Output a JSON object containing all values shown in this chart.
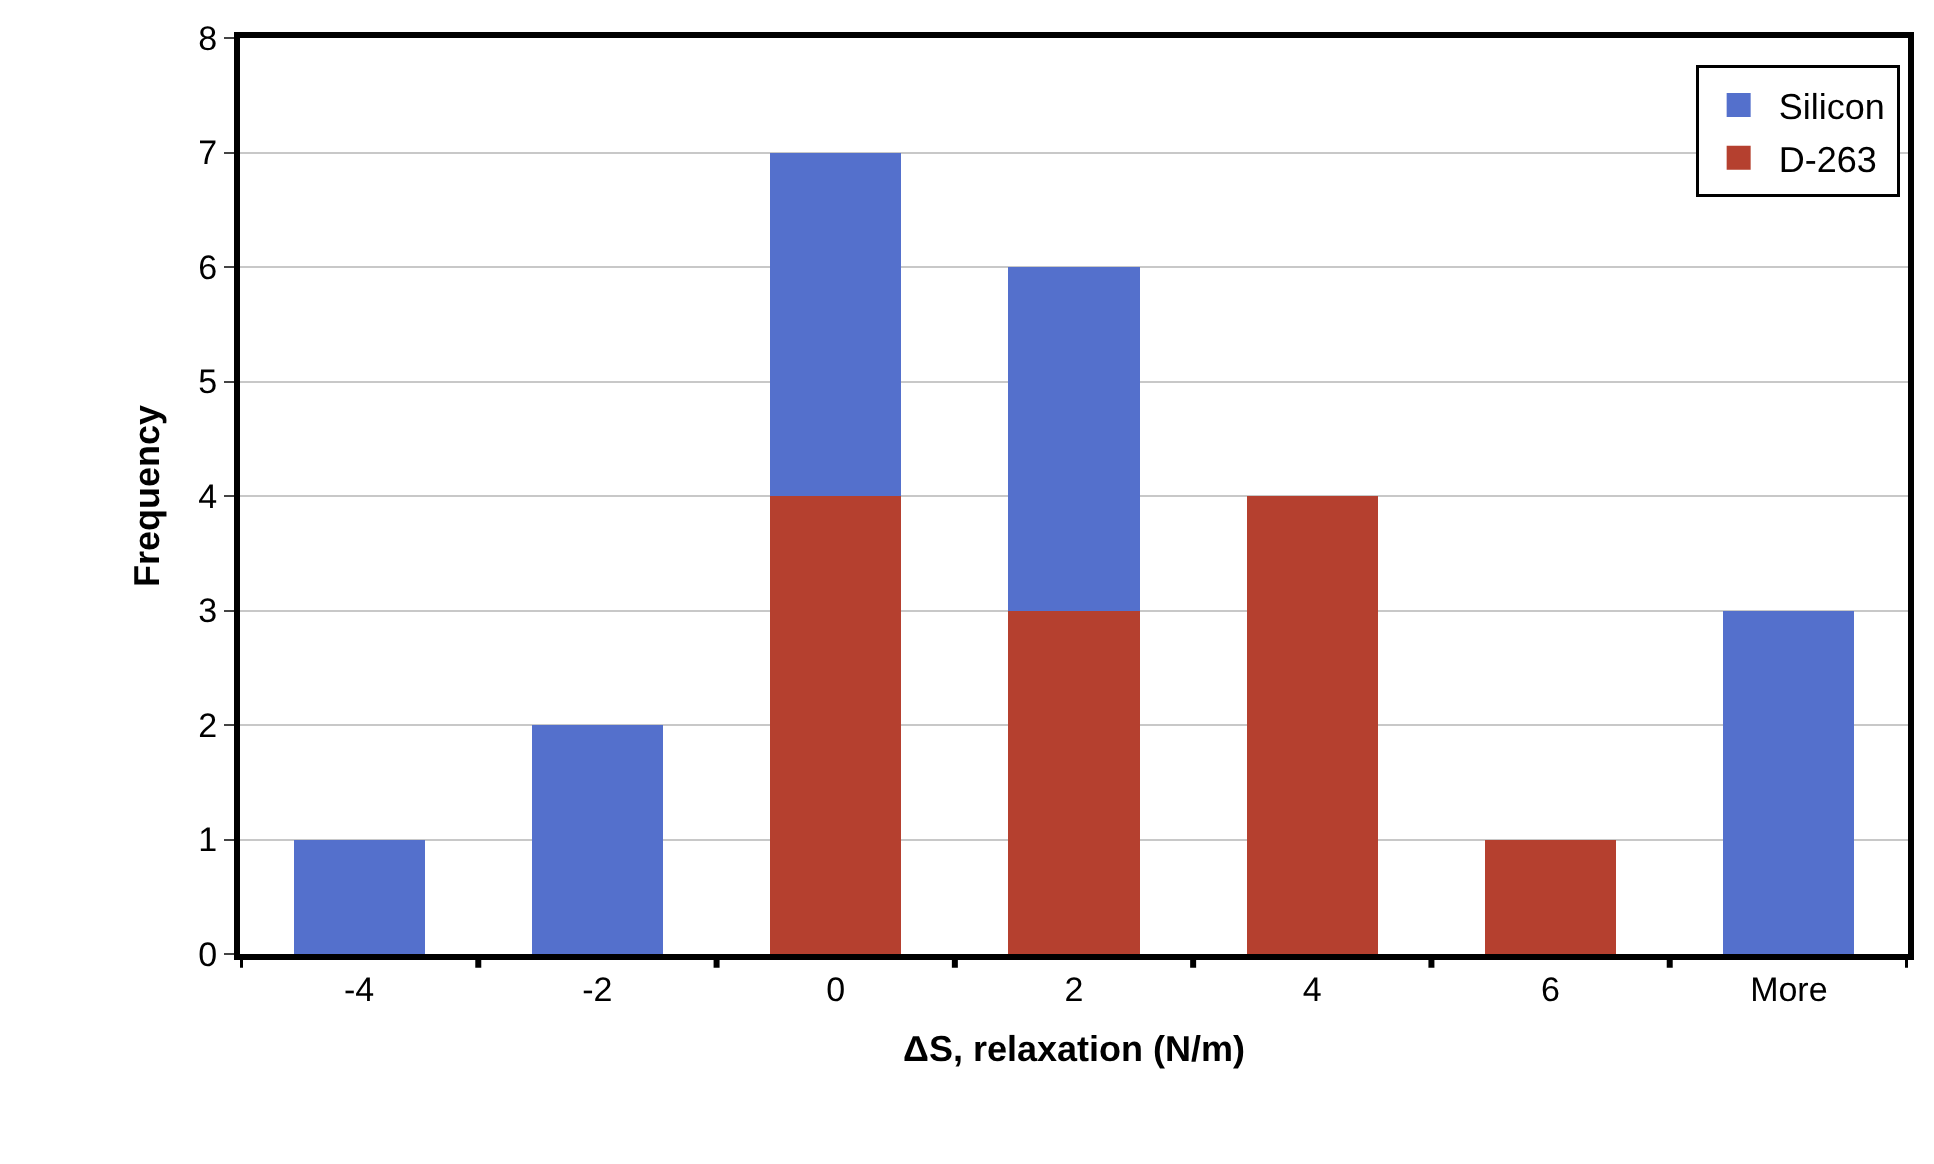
{
  "chart_data": {
    "type": "bar",
    "stacked": true,
    "xlabel": "ΔS, relaxation (N/m)",
    "ylabel": "Frequency",
    "categories": [
      "-4",
      "-2",
      "0",
      "2",
      "4",
      "6",
      "More"
    ],
    "series": [
      {
        "name": "D-263",
        "color": "#b5402f",
        "values": [
          0,
          0,
          4,
          3,
          4,
          1,
          0
        ]
      },
      {
        "name": "Silicon",
        "color": "#5470cc",
        "values": [
          1,
          2,
          3,
          3,
          0,
          0,
          3
        ]
      }
    ],
    "ylim": [
      0,
      8
    ],
    "yticks": [
      0,
      1,
      2,
      3,
      4,
      5,
      6,
      7,
      8
    ],
    "grid": "y",
    "legend": "top right"
  }
}
